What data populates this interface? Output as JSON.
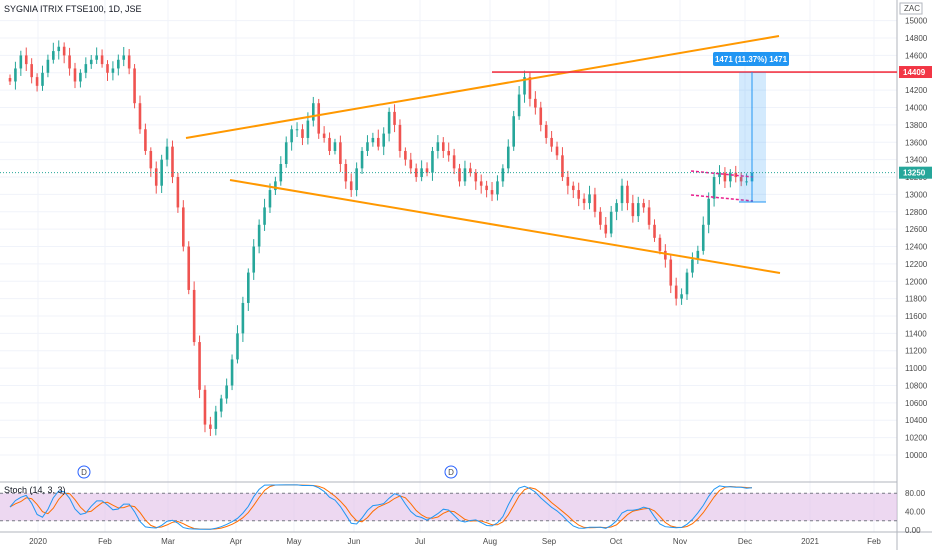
{
  "header": {
    "title": "SYGNIA ITRIX FTSE100, 1D, JSE",
    "currency": "ZAC"
  },
  "colors": {
    "up": "#26a69a",
    "down": "#ef5350",
    "trendline": "#ff9800",
    "resistance": "#f23645",
    "flag": "#e91e8c",
    "measure": "#2196f3",
    "stoch_k": "#2196f3",
    "stoch_d": "#ff6d00",
    "stoch_band": "#e1bee7"
  },
  "chart_data": {
    "type": "candlestick",
    "title": "SYGNIA ITRIX FTSE100, 1D, JSE",
    "x_tick_labels": [
      "2020",
      "Feb",
      "Mar",
      "Apr",
      "May",
      "Jun",
      "Jul",
      "Aug",
      "Sep",
      "Oct",
      "Nov",
      "Dec",
      "2021",
      "Feb"
    ],
    "y_ticks": [
      15000,
      14800,
      14600,
      14400,
      14200,
      14000,
      13800,
      13600,
      13400,
      13200,
      13000,
      12800,
      12600,
      12400,
      12200,
      12000,
      11800,
      11600,
      11400,
      11200,
      11000,
      10800,
      10600,
      10400,
      10200,
      10000
    ],
    "ylim": [
      9850,
      15100
    ],
    "closes": [
      14300,
      14450,
      14600,
      14500,
      14350,
      14250,
      14400,
      14550,
      14650,
      14700,
      14600,
      14450,
      14300,
      14400,
      14500,
      14550,
      14600,
      14500,
      14400,
      14450,
      14550,
      14600,
      14450,
      14050,
      13750,
      13500,
      13300,
      13100,
      13400,
      13550,
      13200,
      12850,
      12400,
      11900,
      11300,
      10750,
      10350,
      10300,
      10500,
      10650,
      10800,
      11100,
      11400,
      11750,
      12100,
      12400,
      12650,
      12850,
      13050,
      13150,
      13350,
      13600,
      13750,
      13750,
      13650,
      13850,
      14050,
      13700,
      13650,
      13500,
      13600,
      13350,
      13150,
      13050,
      13300,
      13500,
      13600,
      13650,
      13550,
      13700,
      13950,
      13800,
      13500,
      13400,
      13300,
      13200,
      13300,
      13250,
      13500,
      13600,
      13500,
      13450,
      13300,
      13150,
      13300,
      13250,
      13150,
      13100,
      13050,
      13000,
      13150,
      13300,
      13550,
      13900,
      14150,
      14350,
      14100,
      14000,
      13800,
      13650,
      13550,
      13450,
      13200,
      13100,
      13050,
      12950,
      12900,
      13000,
      12800,
      12650,
      12550,
      12800,
      12900,
      13100,
      12900,
      12750,
      12900,
      12850,
      12650,
      12500,
      12350,
      12250,
      11950,
      11800,
      11850,
      12100,
      12250,
      12350,
      12650,
      12950,
      13200,
      13250,
      13150,
      13250,
      13200,
      13150,
      13150,
      13250
    ],
    "annotations": {
      "last_price": 13250,
      "resistance_level": 14409,
      "measure_label": "1471 (11.37%) 1471",
      "dividend_marker": "D"
    },
    "grid": true,
    "indicator": {
      "name": "Stoch (14, 3, 3)",
      "ylim": [
        0,
        100
      ],
      "y_ticks": [
        80,
        40,
        0
      ],
      "y_tick_labels": [
        "80.00",
        "40.00",
        "0.00"
      ],
      "upper_band": 80,
      "lower_band": 20
    }
  }
}
